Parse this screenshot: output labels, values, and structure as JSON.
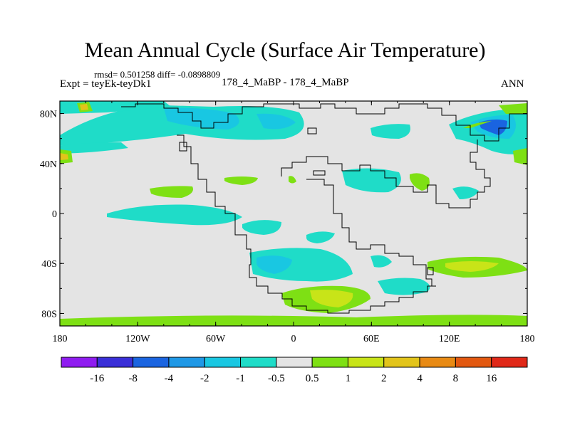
{
  "chart_data": {
    "type": "heatmap",
    "title": "Mean Annual Cycle (Surface Air Temperature)",
    "stats_text": "rmsd= 0.501258 diff= -0.0898809",
    "left_label": "Expt = teyEk-teyDk1",
    "center_label": "178_4_MaBP - 178_4_MaBP",
    "right_label": "ANN",
    "x_ticks": [
      "180",
      "120W",
      "60W",
      "0",
      "60E",
      "120E",
      "180"
    ],
    "y_ticks": [
      "80N",
      "40N",
      "0",
      "40S",
      "80S"
    ],
    "xlim": [
      -180,
      180
    ],
    "ylim": [
      -90,
      90
    ],
    "colorbar": {
      "labels": [
        "-16",
        "-8",
        "-4",
        "-2",
        "-1",
        "-0.5",
        "0.5",
        "1",
        "2",
        "4",
        "8",
        "16"
      ],
      "colors": [
        "#8f1cf0",
        "#3a2fd8",
        "#1a64e0",
        "#1f98e6",
        "#19c7e2",
        "#1fdcc8",
        "#e4e4e4",
        "#7ee014",
        "#c8e418",
        "#e2c41a",
        "#e88a14",
        "#e25810",
        "#e02818"
      ]
    },
    "map_background_color": "#e4e4e4"
  }
}
